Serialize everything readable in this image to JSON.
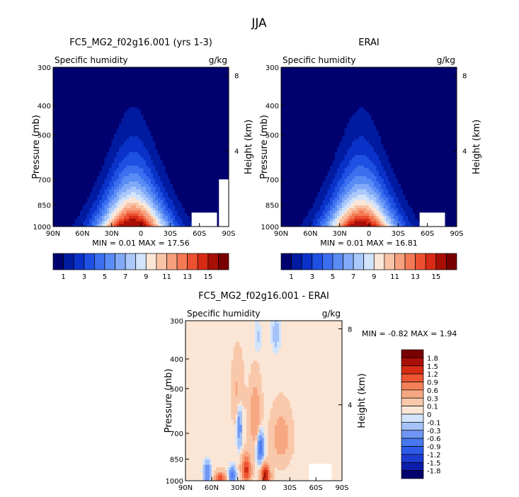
{
  "figure": {
    "title": "JJA"
  },
  "chart_data": [
    {
      "type": "heatmap",
      "title": "FC5_MG2_f02g16.001 (yrs 1-3)",
      "subtitle": "Specific humidity",
      "units": "g/kg",
      "xlabel": "",
      "ylabel": "Pressure (mb)",
      "ylabel_right": "Height (km)",
      "x_ticks": [
        "90N",
        "60N",
        "30N",
        "0",
        "30S",
        "60S",
        "90S"
      ],
      "x_values": [
        90,
        60,
        30,
        0,
        -30,
        -60,
        -90
      ],
      "y_ticks": [
        300,
        400,
        500,
        700,
        850,
        1000
      ],
      "y_scale": "log",
      "ylim": [
        1000,
        300
      ],
      "height_ticks": [
        8,
        4
      ],
      "min_label": "MIN =    0.01    MAX =   17.56",
      "min": 0.01,
      "max": 17.56,
      "colorbar_labels": [
        "1",
        "3",
        "5",
        "7",
        "9",
        "11",
        "13",
        "15"
      ],
      "colorbar_levels": [
        1,
        2,
        3,
        4,
        5,
        6,
        7,
        8,
        9,
        10,
        11,
        12,
        13,
        14,
        15
      ],
      "field": {
        "peak_lat": 8,
        "spread_low": 30,
        "spread_high": 10,
        "top": 17.56
      }
    },
    {
      "type": "heatmap",
      "title": "ERAI",
      "subtitle": "Specific humidity",
      "units": "g/kg",
      "xlabel": "",
      "ylabel": "Pressure (mb)",
      "ylabel_right": "Height (km)",
      "x_ticks": [
        "90N",
        "60N",
        "30N",
        "0",
        "30S",
        "60S",
        "90S"
      ],
      "x_values": [
        90,
        60,
        30,
        0,
        -30,
        -60,
        -90
      ],
      "y_ticks": [
        300,
        400,
        500,
        700,
        850,
        1000
      ],
      "y_scale": "log",
      "ylim": [
        1000,
        300
      ],
      "height_ticks": [
        8,
        4
      ],
      "min_label": "MIN =    0.01    MAX =   16.81",
      "min": 0.01,
      "max": 16.81,
      "colorbar_labels": [
        "1",
        "3",
        "5",
        "7",
        "9",
        "11",
        "13",
        "15"
      ],
      "colorbar_levels": [
        1,
        2,
        3,
        4,
        5,
        6,
        7,
        8,
        9,
        10,
        11,
        12,
        13,
        14,
        15
      ],
      "field": {
        "peak_lat": 8,
        "spread_low": 30,
        "spread_high": 10,
        "top": 16.81
      }
    },
    {
      "type": "heatmap",
      "title": "FC5_MG2_f02g16.001 - ERAI",
      "subtitle": "Specific humidity",
      "units": "g/kg",
      "xlabel": "",
      "ylabel": "Pressure (mb)",
      "ylabel_right": "Height (km)",
      "x_ticks": [
        "90N",
        "60N",
        "30N",
        "0",
        "30S",
        "60S",
        "90S"
      ],
      "x_values": [
        90,
        60,
        30,
        0,
        -30,
        -60,
        -90
      ],
      "y_ticks": [
        300,
        400,
        500,
        700,
        850,
        1000
      ],
      "y_scale": "log",
      "ylim": [
        1000,
        300
      ],
      "height_ticks": [
        8,
        4
      ],
      "min_label": "MIN =   -0.82    MAX =    1.94",
      "min": -0.82,
      "max": 1.94,
      "colorbar_labels": [
        "1.8",
        "1.5",
        "1.2",
        "0.9",
        "0.6",
        "0.3",
        "0.1",
        "0",
        "-0.1",
        "-0.3",
        "-0.6",
        "-0.9",
        "-1.2",
        "-1.5",
        "-1.8"
      ],
      "colorbar_levels": [
        -1.8,
        -1.5,
        -1.2,
        -0.9,
        -0.6,
        -0.3,
        -0.1,
        0,
        0.1,
        0.3,
        0.6,
        0.9,
        1.2,
        1.5,
        1.8
      ]
    }
  ],
  "colors": {
    "humidity_scale": [
      "#00006e",
      "#001aa0",
      "#0a32c8",
      "#1e50e1",
      "#3c6ef0",
      "#5a8cf5",
      "#82aaf8",
      "#aac8fa",
      "#d2e4fb",
      "#fbe6d6",
      "#f9c3a6",
      "#f7a07e",
      "#f47a55",
      "#ec5030",
      "#d82a14",
      "#a80f07",
      "#780000"
    ],
    "diff_scale": [
      "#00006e",
      "#0a1eaa",
      "#1e3cd2",
      "#2d5ae6",
      "#4678f0",
      "#6e96f5",
      "#a5c3f8",
      "#d2e4fb",
      "#fbe6d6",
      "#f9c8aa",
      "#f7a882",
      "#f4805a",
      "#ec5532",
      "#d62c16",
      "#a80f07",
      "#780000"
    ],
    "missing": "#ffffff"
  }
}
